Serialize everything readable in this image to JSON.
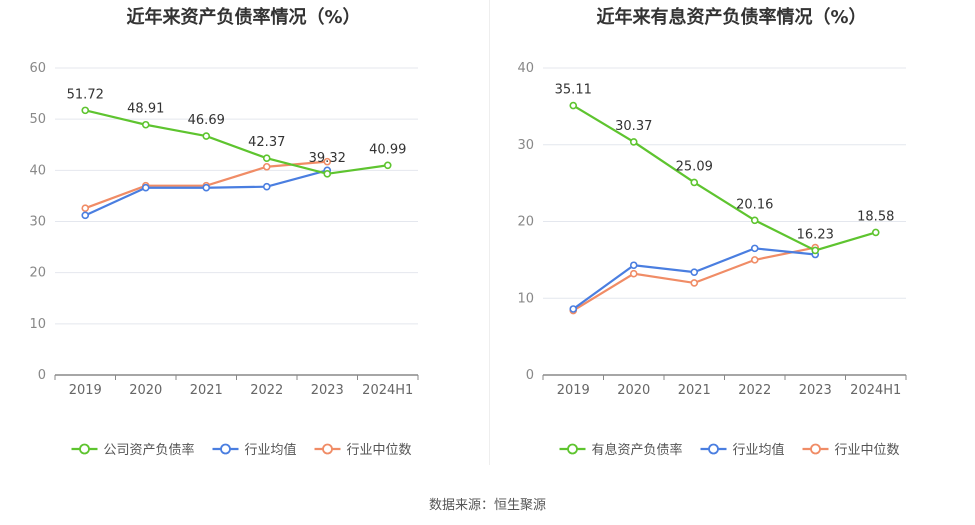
{
  "source_text": "数据来源：恒生聚源",
  "chart_data": [
    {
      "type": "line",
      "title": "近年来资产负债率情况（%）",
      "categories": [
        "2019",
        "2020",
        "2021",
        "2022",
        "2023",
        "2024H1"
      ],
      "ylim": [
        0,
        60
      ],
      "yticks": [
        "0",
        "10",
        "20",
        "30",
        "40",
        "50",
        "60"
      ],
      "grid": true,
      "legend_position": "bottom",
      "series": [
        {
          "name": "公司资产负债率",
          "color": "#5ec42f",
          "labeled": true,
          "values": [
            51.72,
            48.91,
            46.69,
            42.37,
            39.32,
            40.99
          ],
          "labels": [
            "51.72",
            "48.91",
            "46.69",
            "42.37",
            "39.32",
            "40.99"
          ]
        },
        {
          "name": "行业均值",
          "color": "#4a7ee0",
          "labeled": false,
          "values": [
            31.2,
            36.6,
            36.6,
            36.8,
            40.0,
            null
          ]
        },
        {
          "name": "行业中位数",
          "color": "#f08c66",
          "labeled": false,
          "values": [
            32.6,
            37.0,
            37.0,
            40.7,
            41.7,
            null
          ]
        }
      ]
    },
    {
      "type": "line",
      "title": "近年来有息资产负债率情况（%）",
      "categories": [
        "2019",
        "2020",
        "2021",
        "2022",
        "2023",
        "2024H1"
      ],
      "ylim": [
        0,
        40
      ],
      "yticks": [
        "0",
        "10",
        "20",
        "30",
        "40"
      ],
      "grid": true,
      "legend_position": "bottom",
      "series": [
        {
          "name": "有息资产负债率",
          "color": "#5ec42f",
          "labeled": true,
          "values": [
            35.11,
            30.37,
            25.09,
            20.16,
            16.23,
            18.58
          ],
          "labels": [
            "35.11",
            "30.37",
            "25.09",
            "20.16",
            "16.23",
            "18.58"
          ]
        },
        {
          "name": "行业均值",
          "color": "#4a7ee0",
          "labeled": false,
          "values": [
            8.6,
            14.3,
            13.4,
            16.5,
            15.7,
            null
          ]
        },
        {
          "name": "行业中位数",
          "color": "#f08c66",
          "labeled": false,
          "values": [
            8.4,
            13.2,
            12.0,
            15.0,
            16.6,
            null
          ]
        }
      ]
    }
  ]
}
